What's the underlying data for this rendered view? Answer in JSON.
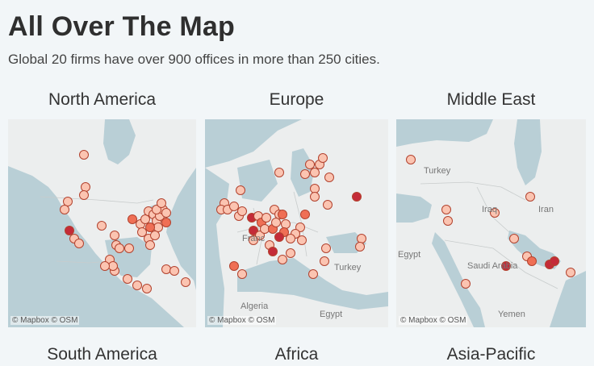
{
  "header": {
    "title": "All Over The Map",
    "subtitle": "Global 20 firms have over 900 offices in more than 250 cities."
  },
  "panels": [
    {
      "title": "North America",
      "attribution": "© Mapbox  © OSM",
      "labels": []
    },
    {
      "title": "Europe",
      "attribution": "© Mapbox  © OSM",
      "labels": [
        {
          "text": "Franc"
        },
        {
          "text": "Turkey"
        },
        {
          "text": "Algeria"
        },
        {
          "text": "Egypt"
        }
      ]
    },
    {
      "title": "Middle East",
      "attribution": "© Mapbox  © OSM",
      "labels": [
        {
          "text": "Turkey"
        },
        {
          "text": "Iraq"
        },
        {
          "text": "Iran"
        },
        {
          "text": "Egypt"
        },
        {
          "text": "Saudi Arabia"
        },
        {
          "text": "Yemen"
        }
      ]
    }
  ],
  "bottom_titles": [
    "South America",
    "Africa",
    "Asia-Pacific"
  ],
  "colors": {
    "water": "#b9cfd6",
    "land": "#eceeee",
    "dot_light": "#fbc4b1",
    "dot_mid": "#ef6f55",
    "dot_dark": "#c42b38",
    "dot_stroke": "#b2422e"
  }
}
